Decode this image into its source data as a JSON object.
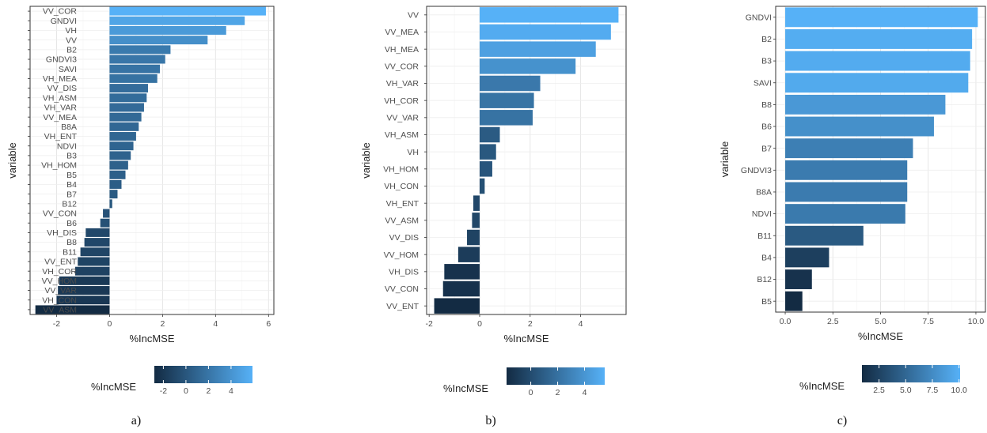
{
  "chart_data": [
    {
      "type": "bar",
      "orientation": "horizontal",
      "caption": "a)",
      "xlabel": "%IncMSE",
      "ylabel": "variable",
      "xlim": [
        -3,
        6.2
      ],
      "xticks": [
        -2,
        0,
        2,
        4,
        6
      ],
      "grid": true,
      "legend": {
        "title": "%IncMSE",
        "placement": "bottom",
        "ticks": [
          -2,
          0,
          2,
          4
        ],
        "range": [
          -2.8,
          5.9
        ]
      },
      "categories": [
        "VV_COR",
        "GNDVI",
        "VH",
        "VV",
        "B2",
        "GNDVI3",
        "SAVI",
        "VH_MEA",
        "VV_DIS",
        "VH_ASM",
        "VH_VAR",
        "VV_MEA",
        "B8A",
        "VH_ENT",
        "NDVI",
        "B3",
        "VH_HOM",
        "B5",
        "B4",
        "B7",
        "B12",
        "VV_CON",
        "B6",
        "VH_DIS",
        "B8",
        "B11",
        "VV_ENT",
        "VH_COR",
        "VV_HOM",
        "VV_VAR",
        "VH_CON",
        "VV_ASM"
      ],
      "values": [
        5.9,
        5.1,
        4.4,
        3.7,
        2.3,
        2.1,
        1.9,
        1.8,
        1.45,
        1.4,
        1.3,
        1.2,
        1.1,
        1.0,
        0.9,
        0.8,
        0.7,
        0.6,
        0.45,
        0.3,
        0.1,
        -0.25,
        -0.35,
        -0.9,
        -0.95,
        -1.1,
        -1.2,
        -1.3,
        -1.9,
        -1.95,
        -2.0,
        -2.8
      ]
    },
    {
      "type": "bar",
      "orientation": "horizontal",
      "caption": "b)",
      "xlabel": "%IncMSE",
      "ylabel": "variable",
      "xlim": [
        -2.1,
        5.8
      ],
      "xticks": [
        -2,
        0,
        2,
        4
      ],
      "grid": true,
      "legend": {
        "title": "%IncMSE",
        "placement": "bottom",
        "ticks": [
          0,
          2,
          4
        ],
        "range": [
          -1.8,
          5.5
        ]
      },
      "categories": [
        "VV",
        "VV_MEA",
        "VH_MEA",
        "VV_COR",
        "VH_VAR",
        "VH_COR",
        "VV_VAR",
        "VH_ASM",
        "VH",
        "VH_HOM",
        "VH_CON",
        "VH_ENT",
        "VV_ASM",
        "VV_DIS",
        "VV_HOM",
        "VH_DIS",
        "VV_CON",
        "VV_ENT"
      ],
      "values": [
        5.5,
        5.2,
        4.6,
        3.8,
        2.4,
        2.15,
        2.1,
        0.8,
        0.65,
        0.5,
        0.2,
        -0.25,
        -0.3,
        -0.5,
        -0.85,
        -1.4,
        -1.45,
        -1.8
      ]
    },
    {
      "type": "bar",
      "orientation": "horizontal",
      "caption": "c)",
      "xlabel": "%IncMSE",
      "ylabel": "variable",
      "xlim": [
        -0.5,
        10.5
      ],
      "xticks": [
        0.0,
        2.5,
        5.0,
        7.5,
        10.0
      ],
      "grid": true,
      "legend": {
        "title": "%IncMSE",
        "placement": "bottom",
        "ticks": [
          2.5,
          5.0,
          7.5,
          10.0
        ],
        "range": [
          0.9,
          10.1
        ]
      },
      "categories": [
        "GNDVI",
        "B2",
        "B3",
        "SAVI",
        "B8",
        "B6",
        "B7",
        "GNDVI3",
        "B8A",
        "NDVI",
        "B11",
        "B4",
        "B12",
        "B5"
      ],
      "values": [
        10.1,
        9.8,
        9.7,
        9.6,
        8.4,
        7.8,
        6.7,
        6.4,
        6.4,
        6.3,
        4.1,
        2.3,
        1.4,
        0.9
      ]
    }
  ]
}
